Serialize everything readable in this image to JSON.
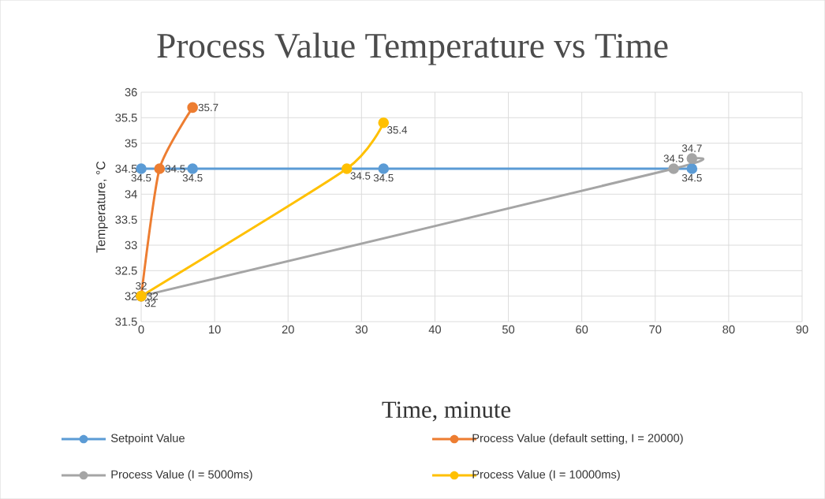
{
  "chart_data": {
    "type": "line",
    "title": "Process Value Temperature vs Time",
    "xlabel": "Time, minute",
    "ylabel": "Temperature, °C",
    "xlim": [
      0,
      90
    ],
    "xticks": [
      0,
      10,
      20,
      30,
      40,
      50,
      60,
      70,
      80,
      90
    ],
    "ylim": [
      31.5,
      36
    ],
    "yticks": [
      31.5,
      32,
      32.5,
      33,
      33.5,
      34,
      34.5,
      35,
      35.5,
      36
    ],
    "grid": true,
    "legend": "bottom",
    "marker": "circle",
    "line_style": "solid",
    "data_labels": true,
    "series": [
      {
        "name": "Setpoint Value",
        "color": "#5b9bd5",
        "x": [
          0,
          7,
          33,
          75
        ],
        "values": [
          34.5,
          34.5,
          34.5,
          34.5
        ]
      },
      {
        "name": "Process Value (default setting, I = 20000)",
        "color": "#ed7d31",
        "x": [
          0,
          2.5,
          7
        ],
        "values": [
          32,
          34.5,
          35.7
        ]
      },
      {
        "name": "Process Value (I = 5000ms)",
        "color": "#a5a5a5",
        "x": [
          0,
          72.5,
          75
        ],
        "values": [
          32,
          34.5,
          34.7
        ]
      },
      {
        "name": "Process Value (I = 10000ms)",
        "color": "#ffc000",
        "x": [
          0,
          28,
          33
        ],
        "values": [
          32,
          34.5,
          35.4
        ]
      }
    ]
  }
}
